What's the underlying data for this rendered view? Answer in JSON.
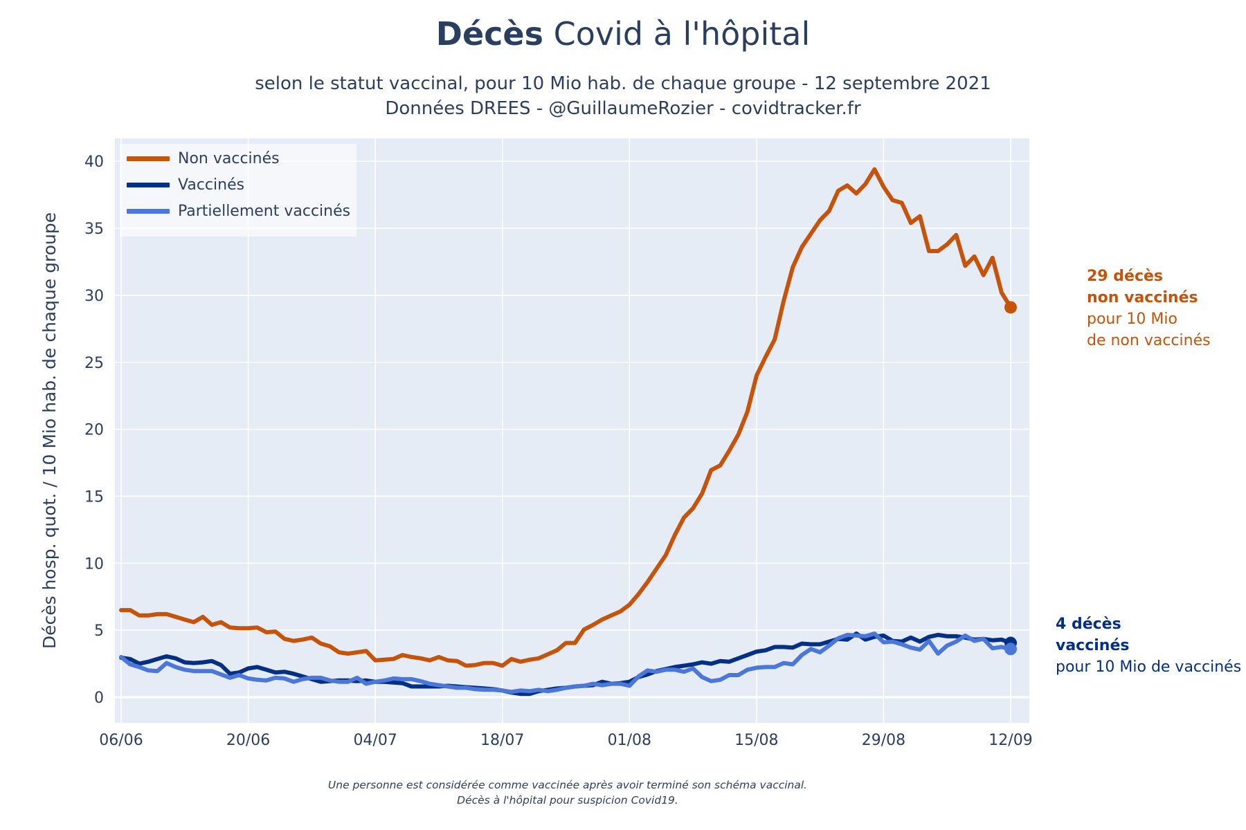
{
  "title": {
    "bold": "Décès",
    "rest": " Covid à l'hôpital"
  },
  "subtitle_lines": [
    "selon le statut vaccinal, pour 10 Mio hab. de chaque groupe - 12 septembre 2021",
    "Données DREES - @GuillaumeRozier - covidtracker.fr"
  ],
  "footnote_lines": [
    "Une personne est considérée comme vaccinée après avoir terminé son schéma vaccinal.",
    "Décès à l'hôpital pour suspicion Covid19."
  ],
  "annotations": {
    "non_vaccines": {
      "line1": "29 décès",
      "line2": "non vaccinés",
      "line3": "pour 10 Mio",
      "line4": "de non vaccinés"
    },
    "vaccines": {
      "line1": "4 décès",
      "line2": "vaccinés",
      "line3": "pour 10 Mio de vaccinés"
    }
  },
  "colors": {
    "non_vaccines": "#c55309",
    "vaccines": "#032f85",
    "partiellement": "#4b77d9",
    "plot_bg": "#e5ecf6",
    "grid": "#ffffff",
    "text": "#2a3f5f"
  },
  "chart_data": {
    "type": "line",
    "title": "Décès Covid à l'hôpital",
    "xlabel": "",
    "ylabel": "Décès hosp. quot. / 10 Mio hab. de chaque groupe",
    "x_start": "06/06",
    "x_end": "12/09",
    "n_days": 99,
    "xticks": [
      {
        "day": 0,
        "label": "06/06"
      },
      {
        "day": 14,
        "label": "20/06"
      },
      {
        "day": 28,
        "label": "04/07"
      },
      {
        "day": 42,
        "label": "18/07"
      },
      {
        "day": 56,
        "label": "01/08"
      },
      {
        "day": 70,
        "label": "15/08"
      },
      {
        "day": 84,
        "label": "29/08"
      },
      {
        "day": 98,
        "label": "12/09"
      }
    ],
    "yticks": [
      0,
      5,
      10,
      15,
      20,
      25,
      30,
      35,
      40
    ],
    "ylim": [
      -1.8,
      41.5
    ],
    "legend_position": "top-left",
    "series": [
      {
        "name": "Non vaccinés",
        "key": "non_vaccines",
        "end_marker": true,
        "values": [
          6.5,
          6.5,
          6.1,
          6.1,
          6.2,
          6.2,
          6.0,
          5.8,
          5.6,
          6.0,
          5.4,
          5.6,
          5.2,
          5.15,
          5.15,
          5.2,
          4.85,
          4.9,
          4.35,
          4.2,
          4.3,
          4.45,
          4.0,
          3.8,
          3.35,
          3.25,
          3.35,
          3.45,
          2.75,
          2.8,
          2.85,
          3.15,
          3.0,
          2.9,
          2.75,
          3.0,
          2.75,
          2.7,
          2.35,
          2.4,
          2.55,
          2.55,
          2.35,
          2.85,
          2.65,
          2.8,
          2.9,
          3.2,
          3.5,
          4.05,
          4.05,
          5.05,
          5.4,
          5.8,
          6.1,
          6.4,
          6.9,
          7.7,
          8.6,
          9.6,
          10.6,
          12.1,
          13.4,
          14.1,
          15.2,
          16.95,
          17.3,
          18.4,
          19.6,
          21.3,
          24.0,
          25.4,
          26.7,
          29.6,
          32.1,
          33.6,
          34.6,
          35.6,
          36.3,
          37.8,
          38.2,
          37.6,
          38.3,
          39.4,
          38.1,
          37.1,
          36.9,
          35.4,
          35.9,
          33.3,
          33.3,
          33.8,
          34.5,
          32.2,
          32.9,
          31.5,
          32.8,
          30.2,
          29.1
        ]
      },
      {
        "name": "Vaccinés",
        "key": "vaccines",
        "end_marker": true,
        "values": [
          2.95,
          2.85,
          2.5,
          2.65,
          2.85,
          3.05,
          2.9,
          2.6,
          2.55,
          2.6,
          2.7,
          2.4,
          1.75,
          1.85,
          2.15,
          2.25,
          2.05,
          1.85,
          1.9,
          1.75,
          1.55,
          1.35,
          1.15,
          1.2,
          1.25,
          1.25,
          1.2,
          1.25,
          1.15,
          1.15,
          1.1,
          1.05,
          0.8,
          0.8,
          0.8,
          0.8,
          0.85,
          0.8,
          0.75,
          0.7,
          0.65,
          0.6,
          0.5,
          0.35,
          0.25,
          0.25,
          0.45,
          0.55,
          0.65,
          0.7,
          0.8,
          0.85,
          0.9,
          1.15,
          1.0,
          1.05,
          1.15,
          1.5,
          1.7,
          1.95,
          2.1,
          2.25,
          2.35,
          2.45,
          2.6,
          2.5,
          2.7,
          2.65,
          2.9,
          3.15,
          3.4,
          3.5,
          3.75,
          3.75,
          3.7,
          4.0,
          3.95,
          3.95,
          4.15,
          4.35,
          4.3,
          4.75,
          4.3,
          4.5,
          4.6,
          4.2,
          4.15,
          4.45,
          4.15,
          4.5,
          4.65,
          4.55,
          4.55,
          4.45,
          4.3,
          4.35,
          4.25,
          4.3,
          4.05
        ]
      },
      {
        "name": "Partiellement vaccinés",
        "key": "partiellement",
        "end_marker": true,
        "values": [
          3.0,
          2.45,
          2.25,
          2.0,
          1.95,
          2.55,
          2.25,
          2.05,
          1.95,
          1.95,
          1.95,
          1.7,
          1.45,
          1.65,
          1.4,
          1.3,
          1.25,
          1.45,
          1.4,
          1.15,
          1.35,
          1.45,
          1.45,
          1.25,
          1.15,
          1.15,
          1.45,
          1.0,
          1.15,
          1.25,
          1.4,
          1.35,
          1.35,
          1.2,
          1.0,
          0.9,
          0.8,
          0.7,
          0.7,
          0.6,
          0.55,
          0.55,
          0.5,
          0.4,
          0.5,
          0.45,
          0.55,
          0.45,
          0.55,
          0.7,
          0.8,
          0.85,
          1.0,
          0.9,
          1.0,
          1.0,
          0.85,
          1.55,
          2.0,
          1.9,
          2.05,
          2.05,
          1.9,
          2.15,
          1.5,
          1.2,
          1.3,
          1.65,
          1.65,
          2.05,
          2.2,
          2.25,
          2.25,
          2.55,
          2.45,
          3.15,
          3.6,
          3.35,
          3.85,
          4.4,
          4.65,
          4.6,
          4.55,
          4.75,
          4.1,
          4.15,
          3.95,
          3.7,
          3.55,
          4.2,
          3.25,
          3.85,
          4.15,
          4.6,
          4.2,
          4.35,
          3.65,
          3.75,
          3.6
        ]
      }
    ]
  }
}
